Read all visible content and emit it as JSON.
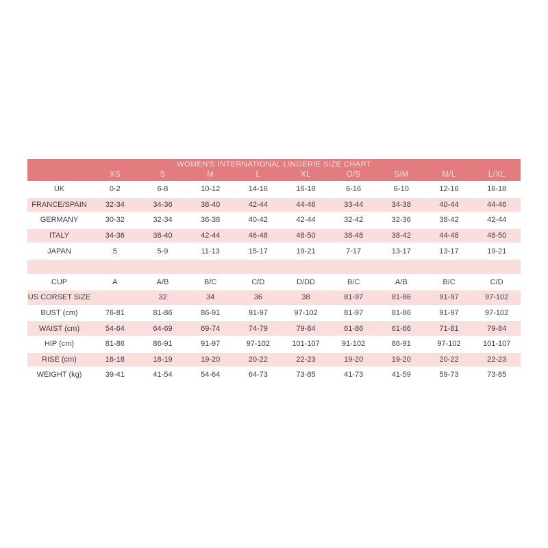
{
  "chart_data": {
    "type": "table",
    "title": "WOMEN'S INTERNATIONAL LINGERIE SIZE CHART",
    "columns": [
      "",
      "XS",
      "S",
      "M",
      "L",
      "XL",
      "O/S",
      "S/M",
      "M/L",
      "L/XL"
    ],
    "rows": [
      {
        "label": "UK",
        "values": [
          "0-2",
          "6-8",
          "10-12",
          "14-16",
          "16-18",
          "6-16",
          "6-10",
          "12-16",
          "16-18"
        ]
      },
      {
        "label": "FRANCE/SPAIN",
        "values": [
          "32-34",
          "34-36",
          "38-40",
          "42-44",
          "44-46",
          "33-44",
          "34-38",
          "40-44",
          "44-46"
        ]
      },
      {
        "label": "GERMANY",
        "values": [
          "30-32",
          "32-34",
          "36-38",
          "40-42",
          "42-44",
          "32-42",
          "32-36",
          "38-42",
          "42-44"
        ]
      },
      {
        "label": "ITALY",
        "values": [
          "34-36",
          "38-40",
          "42-44",
          "46-48",
          "48-50",
          "38-48",
          "38-42",
          "44-48",
          "48-50"
        ]
      },
      {
        "label": "JAPAN",
        "values": [
          "5",
          "5-9",
          "11-13",
          "15-17",
          "19-21",
          "7-17",
          "13-17",
          "13-17",
          "19-21"
        ]
      },
      {
        "label": "",
        "values": [
          "",
          "",
          "",
          "",
          "",
          "",
          "",
          "",
          ""
        ]
      },
      {
        "label": "CUP",
        "values": [
          "A",
          "A/B",
          "B/C",
          "C/D",
          "D/DD",
          "B/C",
          "A/B",
          "B/C",
          "C/D"
        ]
      },
      {
        "label": "US CORSET SIZE",
        "values": [
          "",
          "32",
          "34",
          "36",
          "38",
          "81-97",
          "81-86",
          "91-97",
          "97-102"
        ]
      },
      {
        "label": "BUST (cm)",
        "values": [
          "76-81",
          "81-86",
          "86-91",
          "91-97",
          "97-102",
          "81-97",
          "81-86",
          "91-97",
          "97-102"
        ]
      },
      {
        "label": "WAIST (cm)",
        "values": [
          "54-64",
          "64-69",
          "69-74",
          "74-79",
          "79-84",
          "61-86",
          "61-66",
          "71-81",
          "79-84"
        ]
      },
      {
        "label": "HIP (cm)",
        "values": [
          "81-86",
          "86-91",
          "91-97",
          "97-102",
          "101-107",
          "91-102",
          "86-91",
          "97-102",
          "101-107"
        ]
      },
      {
        "label": "RISE (cm)",
        "values": [
          "16-18",
          "18-19",
          "19-20",
          "20-22",
          "22-23",
          "19-20",
          "19-20",
          "20-22",
          "22-23"
        ]
      },
      {
        "label": "WEIGHT (kg)",
        "values": [
          "39-41",
          "41-54",
          "54-64",
          "64-73",
          "73-85",
          "41-73",
          "41-59",
          "59-73",
          "73-85"
        ]
      }
    ],
    "layout_hints": {
      "stripe_pattern": "odd rows pink, even rows white",
      "header_rows": 2
    },
    "colors": {
      "header_bg": "#e27c7e",
      "header_text": "#f6dfdf",
      "stripe_pink": "#fadddd",
      "stripe_white": "#ffffff",
      "body_text": "#3f3f3f",
      "page_bg": "#ffffff"
    }
  }
}
